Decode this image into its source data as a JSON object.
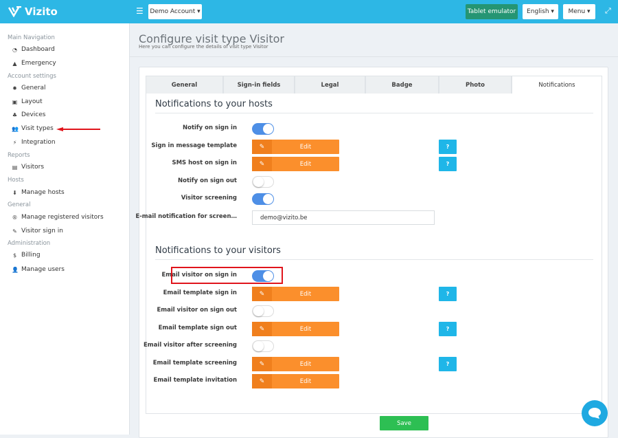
{
  "app": {
    "name": "Vizito"
  },
  "topbar": {
    "account": "Demo Account",
    "tablet": "Tablet emulator",
    "language": "English",
    "menu": "Menu"
  },
  "sidebar": {
    "groups": [
      {
        "title": "Main Navigation",
        "items": [
          {
            "label": "Dashboard",
            "icon": "dashboard-icon"
          },
          {
            "label": "Emergency",
            "icon": "warning-icon"
          }
        ]
      },
      {
        "title": "Account settings",
        "items": [
          {
            "label": "General",
            "icon": "gear-icon"
          },
          {
            "label": "Layout",
            "icon": "image-icon"
          },
          {
            "label": "Devices",
            "icon": "sitemap-icon"
          },
          {
            "label": "Visit types",
            "icon": "users-icon"
          },
          {
            "label": "Integration",
            "icon": "plug-icon"
          }
        ]
      },
      {
        "title": "Reports",
        "items": [
          {
            "label": "Visitors",
            "icon": "book-icon"
          }
        ]
      },
      {
        "title": "Hosts",
        "items": [
          {
            "label": "Manage hosts",
            "icon": "user-icon"
          }
        ]
      },
      {
        "title": "General",
        "items": [
          {
            "label": "Manage registered visitors",
            "icon": "registered-icon"
          },
          {
            "label": "Visitor sign in",
            "icon": "pencil-icon"
          }
        ]
      },
      {
        "title": "Administration",
        "items": [
          {
            "label": "Billing",
            "icon": "dollar-icon"
          },
          {
            "label": "Manage users",
            "icon": "user-plus-icon"
          }
        ]
      }
    ]
  },
  "page": {
    "title": "Configure visit type Visitor",
    "subtitle": "Here you can configure the details of visit type Visitor"
  },
  "tabs": [
    {
      "label": "General"
    },
    {
      "label": "Sign-in fields"
    },
    {
      "label": "Legal"
    },
    {
      "label": "Badge"
    },
    {
      "label": "Photo"
    },
    {
      "label": "Notifications",
      "active": true
    }
  ],
  "hosts": {
    "title": "Notifications to your hosts",
    "rows": [
      {
        "label": "Notify on sign in",
        "type": "toggle",
        "on": true
      },
      {
        "label": "Sign in message template",
        "type": "edit",
        "button": "Edit",
        "help": "?"
      },
      {
        "label": "SMS host on sign in",
        "type": "edit",
        "button": "Edit",
        "help": "?"
      },
      {
        "label": "Notify on sign out",
        "type": "toggle",
        "on": false
      },
      {
        "label": "Visitor screening",
        "type": "toggle",
        "on": true
      },
      {
        "label": "E-mail notification for screen…",
        "type": "input",
        "value": "demo@vizito.be"
      }
    ]
  },
  "visitors": {
    "title": "Notifications to your visitors",
    "rows": [
      {
        "label": "Email visitor on sign in",
        "type": "toggle",
        "on": true
      },
      {
        "label": "Email template sign in",
        "type": "edit",
        "button": "Edit",
        "help": "?"
      },
      {
        "label": "Email visitor on sign out",
        "type": "toggle",
        "on": false
      },
      {
        "label": "Email template sign out",
        "type": "edit",
        "button": "Edit",
        "help": "?"
      },
      {
        "label": "Email visitor after screening",
        "type": "toggle",
        "on": false
      },
      {
        "label": "Email template screening",
        "type": "edit",
        "button": "Edit",
        "help": "?"
      },
      {
        "label": "Email template invitation",
        "type": "edit",
        "button": "Edit"
      }
    ]
  },
  "save": "Save",
  "colors": {
    "topbar": "#2db7e5",
    "edit": "#fb8f2c",
    "help": "#1fb6e8",
    "save": "#2dbf53",
    "toggle_on": "#4e8fe6",
    "highlight": "#e0141b"
  }
}
